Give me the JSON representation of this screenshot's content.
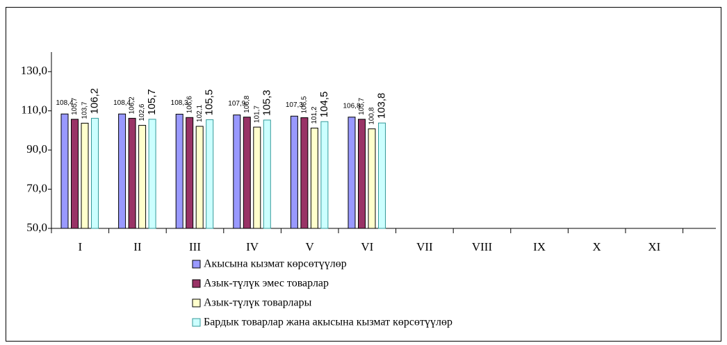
{
  "chart_data": {
    "type": "bar",
    "categories": [
      "I",
      "II",
      "III",
      "IV",
      "V",
      "VI",
      "VII",
      "VIII",
      "IX",
      "X",
      "XI"
    ],
    "series": [
      {
        "name": "Акысына кызмат көрсөтүүлөр",
        "color": "#9999ff",
        "values": [
          108.4,
          108.4,
          108.3,
          107.9,
          107.3,
          106.8,
          null,
          null,
          null,
          null,
          null
        ],
        "value_labels": [
          "108,4",
          "108,4",
          "108,3",
          "107,9",
          "107,3",
          "106,8",
          null,
          null,
          null,
          null,
          null
        ]
      },
      {
        "name": "Азык-түлүк эмес товарлар",
        "color": "#993366",
        "values": [
          105.7,
          106.2,
          106.6,
          106.8,
          106.5,
          105.7,
          null,
          null,
          null,
          null,
          null
        ],
        "value_labels": [
          "105,7",
          "106,2",
          "106,6",
          "106,8",
          "106,5",
          "105,7",
          null,
          null,
          null,
          null,
          null
        ]
      },
      {
        "name": "Азык-түлүк товарлары",
        "color": "#ffffcc",
        "values": [
          103.7,
          102.6,
          102.1,
          101.7,
          101.2,
          100.8,
          null,
          null,
          null,
          null,
          null
        ],
        "value_labels": [
          "103,7",
          "102,6",
          "102,1",
          "101,7",
          "101,2",
          "100,8",
          null,
          null,
          null,
          null,
          null
        ]
      },
      {
        "name": "Бардык товарлар жана акысына кызмат көрсөтүүлөр",
        "color": "#ccffff",
        "values": [
          106.2,
          105.7,
          105.5,
          105.3,
          104.5,
          103.8,
          null,
          null,
          null,
          null,
          null
        ],
        "value_labels": [
          "106,2",
          "105,7",
          "105,5",
          "105,3",
          "104,5",
          "103,8",
          null,
          null,
          null,
          null,
          null
        ]
      }
    ],
    "ylim": [
      50,
      140
    ],
    "yticks": [
      {
        "value": 50,
        "label": "50,0"
      },
      {
        "value": 70,
        "label": "70,0"
      },
      {
        "value": 90,
        "label": "90,0"
      },
      {
        "value": 110,
        "label": "110,0"
      },
      {
        "value": 130,
        "label": "130,0"
      }
    ],
    "grid": false
  }
}
